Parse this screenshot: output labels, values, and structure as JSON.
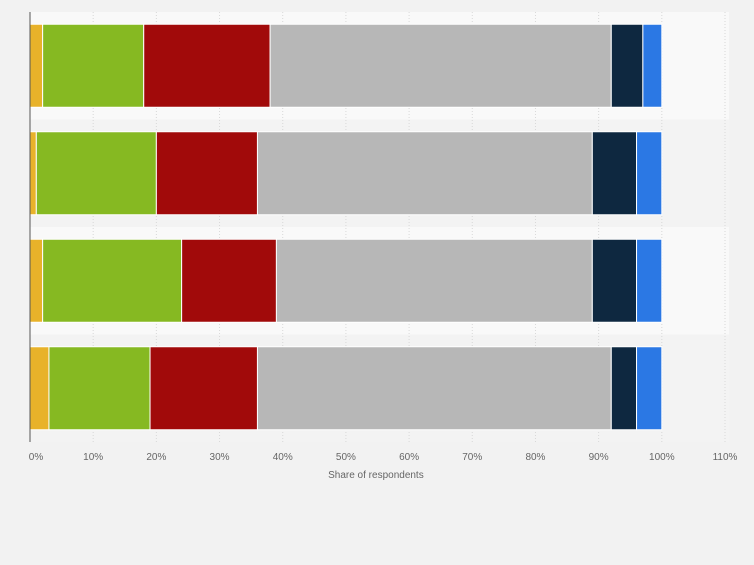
{
  "chart_data": {
    "type": "bar",
    "orientation": "horizontal",
    "stacked": true,
    "title": "",
    "xlabel": "Share of respondents",
    "ylabel": "",
    "xlim": [
      0,
      110
    ],
    "x_ticks": [
      0,
      10,
      20,
      30,
      40,
      50,
      60,
      70,
      80,
      90,
      100,
      110
    ],
    "x_tick_labels": [
      "0%",
      "10%",
      "20%",
      "30%",
      "40%",
      "50%",
      "60%",
      "70%",
      "80%",
      "90%",
      "100%",
      "110%"
    ],
    "categories": [
      "",
      "",
      "",
      ""
    ],
    "grid": true,
    "legend": "none",
    "series": [
      {
        "color": "#e8b22a",
        "values": [
          2,
          1,
          2,
          3
        ]
      },
      {
        "color": "#86b922",
        "values": [
          16,
          19,
          22,
          16
        ]
      },
      {
        "color": "#a10a0a",
        "values": [
          20,
          16,
          15,
          17
        ]
      },
      {
        "color": "#b7b7b7",
        "values": [
          54,
          53,
          50,
          56
        ]
      },
      {
        "color": "#0e2840",
        "values": [
          5,
          7,
          7,
          4
        ]
      },
      {
        "color": "#2b78e4",
        "values": [
          3,
          4,
          4,
          4
        ]
      }
    ]
  }
}
